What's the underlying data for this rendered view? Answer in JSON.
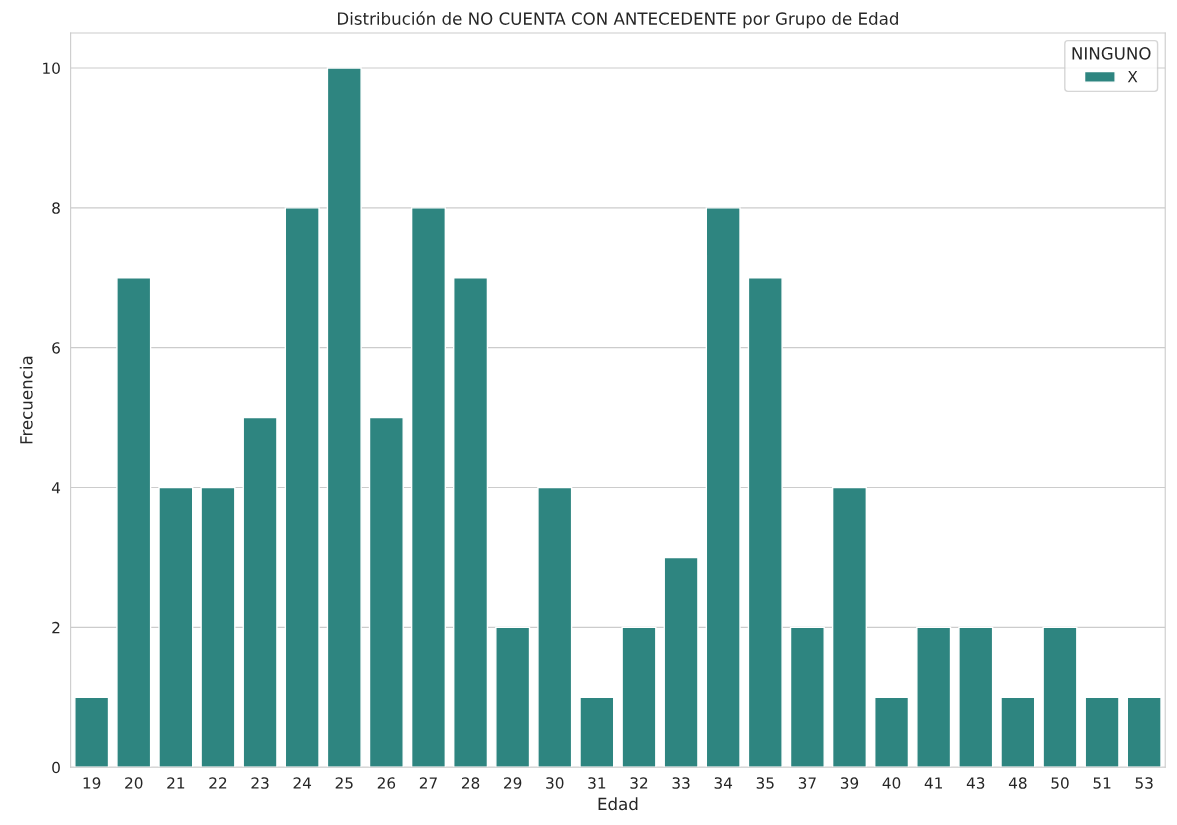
{
  "chart_data": {
    "type": "bar",
    "title": "Distribución de NO CUENTA CON ANTECEDENTE por Grupo de Edad",
    "xlabel": "Edad",
    "ylabel": "Frecuencia",
    "legend_title": "NINGUNO",
    "categories": [
      "19",
      "20",
      "21",
      "22",
      "23",
      "24",
      "25",
      "26",
      "27",
      "28",
      "29",
      "30",
      "31",
      "32",
      "33",
      "34",
      "35",
      "37",
      "39",
      "40",
      "41",
      "43",
      "48",
      "50",
      "51",
      "53"
    ],
    "series": [
      {
        "name": "X",
        "color": "#2e8580",
        "values": [
          1,
          7,
          4,
          4,
          5,
          8,
          10,
          5,
          8,
          7,
          2,
          4,
          1,
          2,
          3,
          8,
          7,
          2,
          4,
          1,
          2,
          2,
          1,
          2,
          1,
          1
        ]
      }
    ],
    "ylim": [
      0,
      10.5
    ],
    "yticks": [
      0,
      2,
      4,
      6,
      8,
      10
    ],
    "grid": "y",
    "legend": "top right"
  }
}
